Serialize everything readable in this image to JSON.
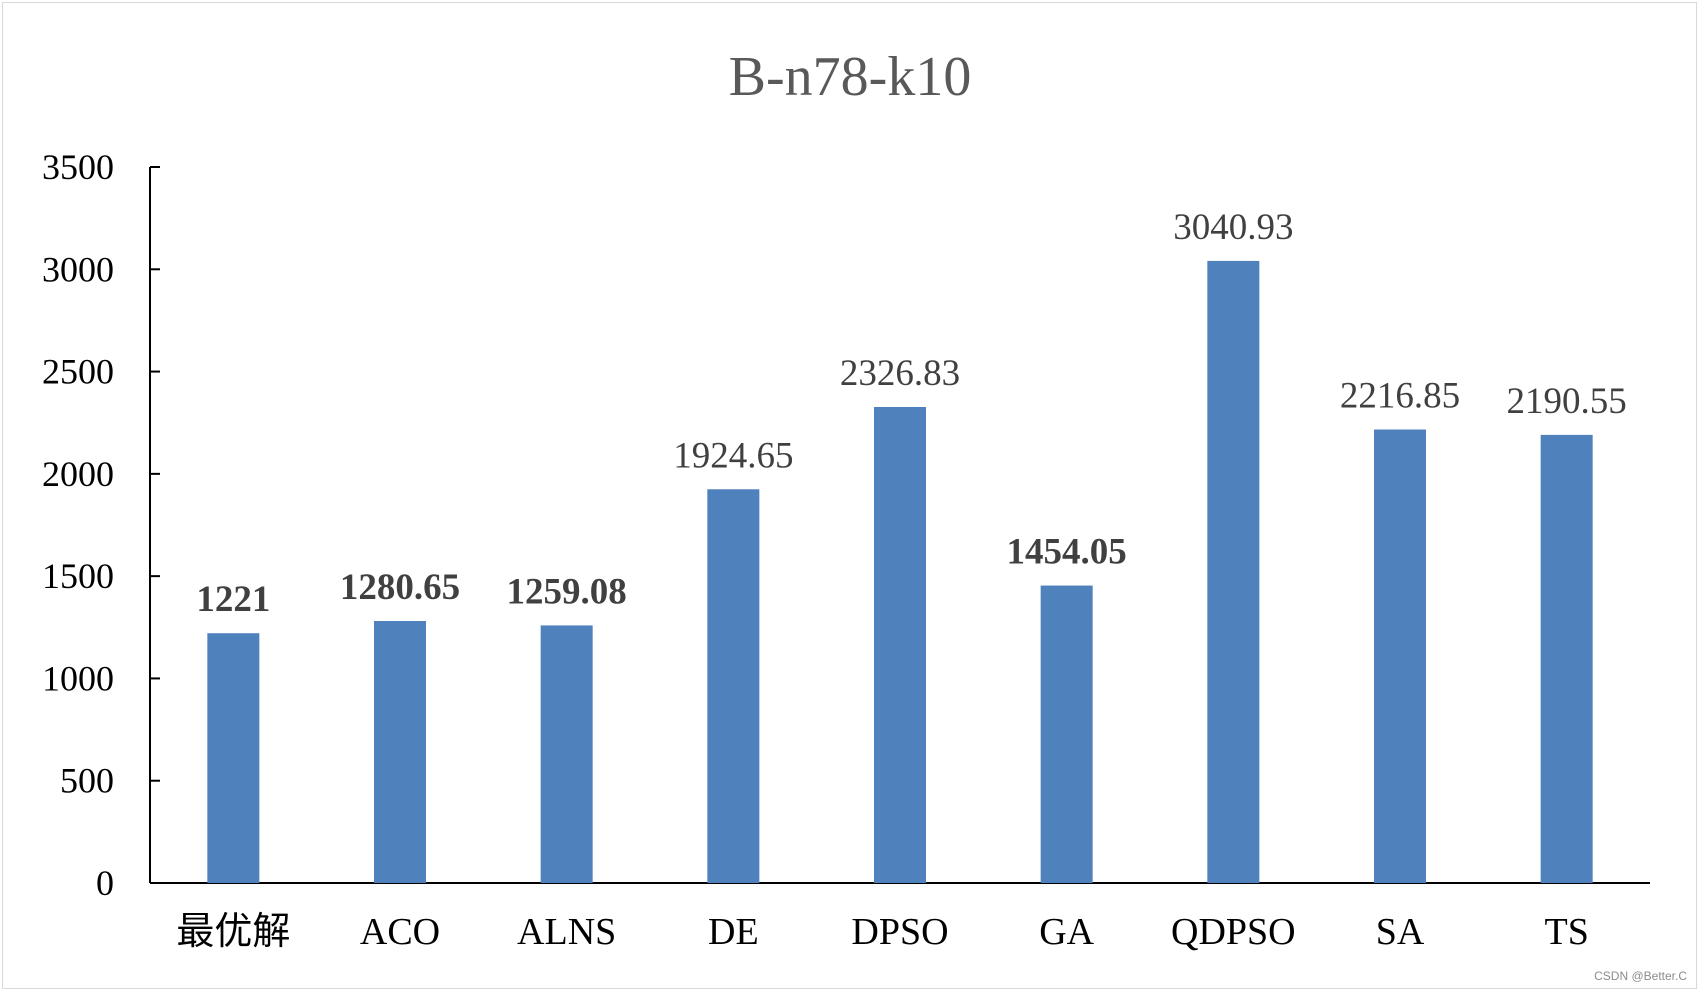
{
  "chart_data": {
    "type": "bar",
    "title": "B-n78-k10",
    "xlabel": "",
    "ylabel": "",
    "ylim": [
      0,
      3500
    ],
    "yticks": [
      0,
      500,
      1000,
      1500,
      2000,
      2500,
      3000,
      3500
    ],
    "grid": false,
    "legend": "none",
    "categories": [
      "最优解",
      "ACO",
      "ALNS",
      "DE",
      "DPSO",
      "GA",
      "QDPSO",
      "SA",
      "TS"
    ],
    "values": [
      1221,
      1280.65,
      1259.08,
      1924.65,
      2326.83,
      1454.05,
      3040.93,
      2216.85,
      2190.55
    ],
    "data_labels": [
      "1221",
      "1280.65",
      "1259.08",
      "1924.65",
      "2326.83",
      "1454.05",
      "3040.93",
      "2216.85",
      "2190.55"
    ],
    "label_colors": [
      "#ff0000",
      "#00b050",
      "#00b050",
      "#404040",
      "#404040",
      "#00b050",
      "#404040",
      "#404040",
      "#404040"
    ],
    "label_bold": [
      true,
      true,
      true,
      false,
      false,
      true,
      false,
      false,
      false
    ],
    "bar_color": "#4f81bd",
    "axis_color": "#000000"
  },
  "watermark": "CSDN @Better.C"
}
